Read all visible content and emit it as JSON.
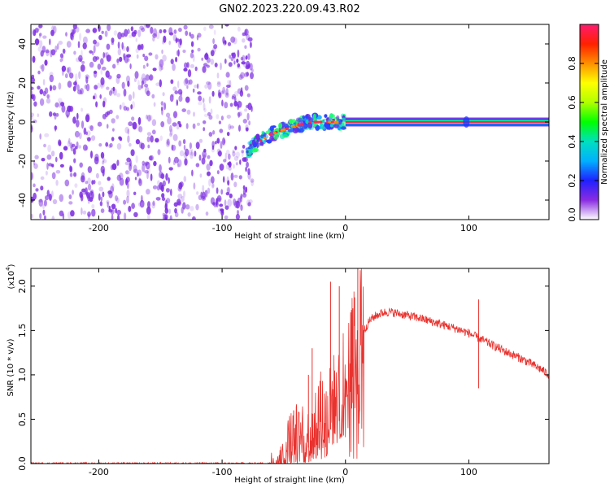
{
  "title": "GN02.2023.220.09.43.R02",
  "colors": {
    "snr_line": "#e8322e",
    "spectro_noise": "#7b2be0",
    "spectro_peak": "#ff2a55",
    "colorbar": [
      "#ffffff",
      "#8a2be2",
      "#2020ff",
      "#00b0ff",
      "#00e0c0",
      "#00ff00",
      "#b0ff00",
      "#ffff00",
      "#ff9000",
      "#ff2000",
      "#ff1a70"
    ]
  },
  "chart_data": [
    {
      "type": "heatmap",
      "name": "spectrogram",
      "xlabel": "Height of straight line (km)",
      "ylabel": "Frequency (Hz)",
      "xlim": [
        -255,
        165
      ],
      "ylim": [
        -50,
        50
      ],
      "xticks": [
        -200,
        -100,
        0,
        100
      ],
      "xtick_labels": [
        "-200",
        "-100",
        "0",
        "100"
      ],
      "yticks": [
        -40,
        -20,
        0,
        20,
        40
      ],
      "ytick_labels": [
        "-40",
        "-20",
        "0",
        "20",
        "40"
      ],
      "noise_region_x": [
        -255,
        -75
      ],
      "transition_region_x": [
        -80,
        0
      ],
      "tone_frequency_hz": 0,
      "tone_start_x": 0,
      "transition_path": [
        [
          -80,
          -15
        ],
        [
          -70,
          -10
        ],
        [
          -60,
          -6
        ],
        [
          -50,
          -4
        ],
        [
          -40,
          -2
        ],
        [
          -30,
          0
        ],
        [
          -20,
          0
        ],
        [
          -10,
          0
        ],
        [
          0,
          0
        ]
      ],
      "colorbar": {
        "label": "Normalized spectral amplitude",
        "range": [
          0,
          1
        ],
        "ticks": [
          0.0,
          0.2,
          0.4,
          0.6,
          0.8
        ],
        "tick_labels": [
          "0.0",
          "0.2",
          "0.4",
          "0.6",
          "0.8"
        ]
      }
    },
    {
      "type": "line",
      "name": "snr",
      "xlabel": "Height of straight line (km)",
      "ylabel": "SNR (10 * v/v)",
      "y_exponent_label": "(x10",
      "y_exponent_power": "4",
      "y_exponent_close": ")",
      "xlim": [
        -255,
        165
      ],
      "ylim": [
        0,
        2.2
      ],
      "xticks": [
        -200,
        -100,
        0,
        100
      ],
      "xtick_labels": [
        "-200",
        "-100",
        "0",
        "100"
      ],
      "yticks": [
        0.0,
        0.5,
        1.0,
        1.5,
        2.0
      ],
      "ytick_labels": [
        "0.0",
        "0.5",
        "1.0",
        "1.5",
        "2.0"
      ],
      "envelope": {
        "x": [
          -255,
          -60,
          -50,
          -45,
          -40,
          -30,
          -25,
          -20,
          -15,
          -10,
          -5,
          0,
          5,
          10,
          15,
          20,
          25,
          30,
          35,
          40,
          50,
          60,
          70,
          80,
          90,
          100,
          110,
          120,
          130,
          140,
          150,
          160,
          165
        ],
        "y": [
          0.0,
          0.0,
          0.1,
          0.3,
          0.35,
          0.3,
          0.5,
          0.6,
          0.55,
          0.7,
          0.8,
          0.9,
          1.1,
          1.3,
          1.5,
          1.62,
          1.67,
          1.7,
          1.71,
          1.7,
          1.67,
          1.64,
          1.6,
          1.56,
          1.52,
          1.47,
          1.4,
          1.33,
          1.26,
          1.2,
          1.13,
          1.05,
          1.0
        ]
      },
      "spikes": [
        {
          "x": -42,
          "y": 0.6
        },
        {
          "x": -30,
          "y": 1.0
        },
        {
          "x": -27,
          "y": 1.3
        },
        {
          "x": -12,
          "y": 2.05
        },
        {
          "x": -5,
          "y": 2.0
        },
        {
          "x": 6,
          "y": 1.75
        },
        {
          "x": 10,
          "y": 2.2
        },
        {
          "x": 108,
          "y": 1.85
        }
      ]
    }
  ]
}
